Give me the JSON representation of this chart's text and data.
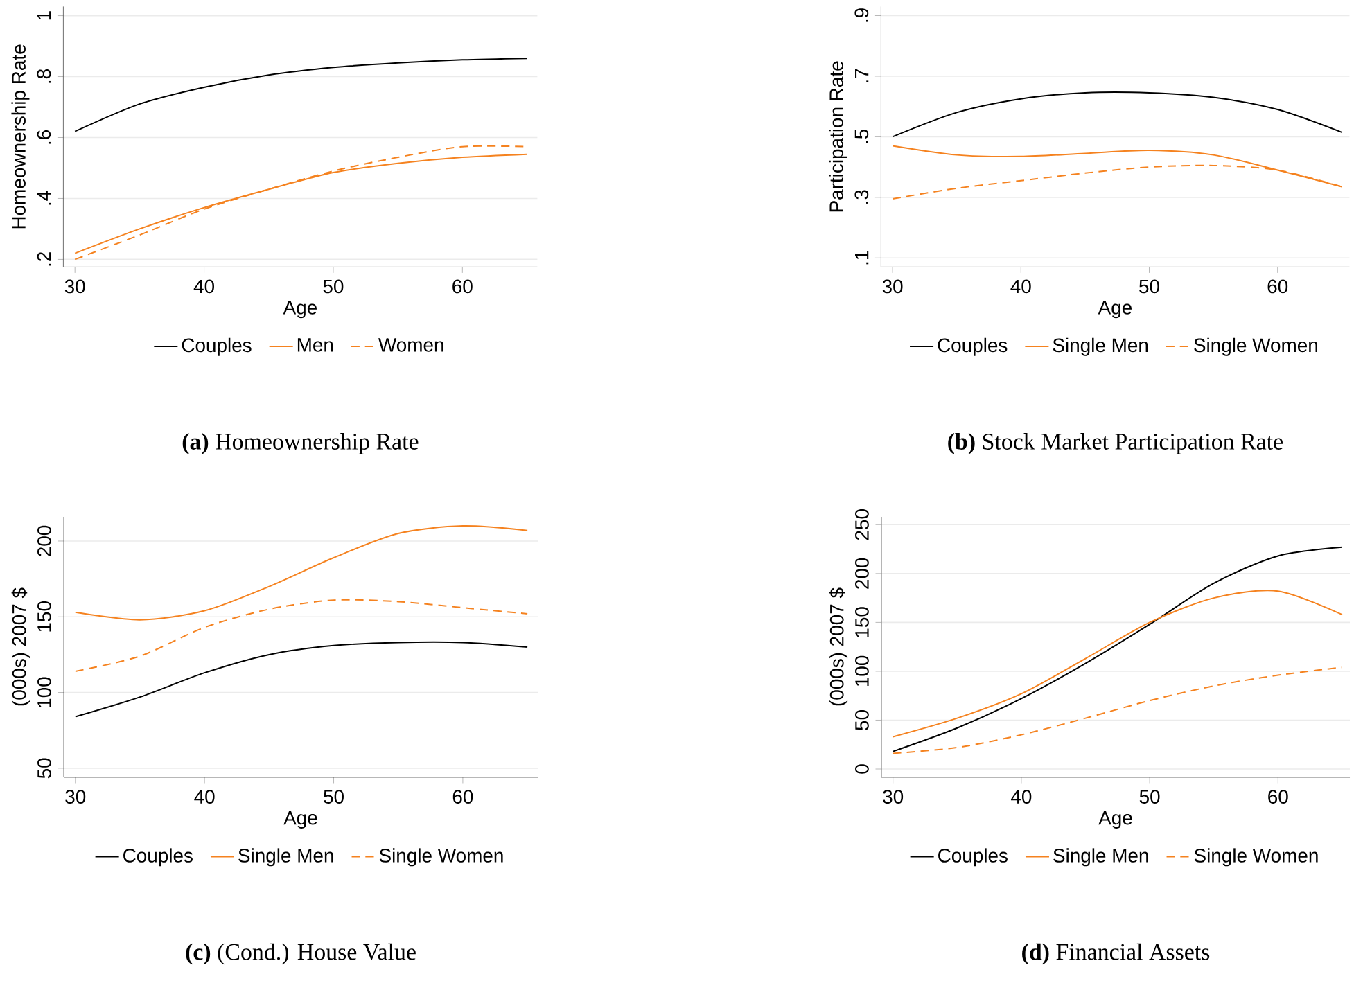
{
  "chart_data": [
    {
      "type": "line",
      "title": "**(a)** Homeownership Rate",
      "xlabel": "Age",
      "ylabel": "Homeownership Rate",
      "x": [
        30,
        35,
        40,
        45,
        50,
        55,
        60,
        65
      ],
      "xlim": [
        29.1,
        65.8
      ],
      "ylim": [
        0.175,
        1.03
      ],
      "xticks": [
        30,
        40,
        50,
        60
      ],
      "yticks": [
        {
          "value": 0.2,
          "label": ".2"
        },
        {
          "value": 0.4,
          "label": ".4"
        },
        {
          "value": 0.6,
          "label": ".6"
        },
        {
          "value": 0.8,
          "label": ".8"
        },
        1
      ],
      "grid": "y",
      "legend": "bottom",
      "series": [
        {
          "name": "Couples",
          "color": "#000000",
          "line_style": "solid",
          "values": [
            0.62,
            0.71,
            0.765,
            0.805,
            0.83,
            0.845,
            0.855,
            0.86
          ]
        },
        {
          "name": "Men",
          "color": "#f5821f",
          "line_style": "solid",
          "values": [
            0.22,
            0.3,
            0.37,
            0.43,
            0.485,
            0.515,
            0.535,
            0.545
          ]
        },
        {
          "name": "Women",
          "color": "#f5821f",
          "line_style": "dashed",
          "values": [
            0.2,
            0.28,
            0.365,
            0.43,
            0.49,
            0.535,
            0.57,
            0.57
          ]
        }
      ]
    },
    {
      "type": "line",
      "title": "**(b)** Stock Market Participation Rate",
      "xlabel": "Age",
      "ylabel": "Participation Rate",
      "x": [
        30,
        35,
        40,
        45,
        50,
        55,
        60,
        65
      ],
      "xlim": [
        29.1,
        65.6
      ],
      "ylim": [
        0.07,
        0.93
      ],
      "xticks": [
        30,
        40,
        50,
        60
      ],
      "yticks": [
        {
          "value": 0.1,
          "label": ".1"
        },
        {
          "value": 0.3,
          "label": ".3"
        },
        {
          "value": 0.5,
          "label": ".5"
        },
        {
          "value": 0.7,
          "label": ".7"
        },
        {
          "value": 0.9,
          "label": ".9"
        }
      ],
      "grid": "y",
      "legend": "bottom",
      "series": [
        {
          "name": "Couples",
          "color": "#000000",
          "line_style": "solid",
          "values": [
            0.5,
            0.58,
            0.625,
            0.645,
            0.645,
            0.63,
            0.59,
            0.515
          ]
        },
        {
          "name": "Single Men",
          "color": "#f5821f",
          "line_style": "solid",
          "values": [
            0.47,
            0.44,
            0.435,
            0.445,
            0.455,
            0.44,
            0.39,
            0.335
          ]
        },
        {
          "name": "Single Women",
          "color": "#f5821f",
          "line_style": "dashed",
          "values": [
            0.295,
            0.33,
            0.355,
            0.38,
            0.4,
            0.405,
            0.39,
            0.335
          ]
        }
      ]
    },
    {
      "type": "line",
      "title": "**(c)** (Cond.) House Value",
      "xlabel": "Age",
      "ylabel": "(000s) 2007 $",
      "x": [
        30,
        35,
        40,
        45,
        50,
        55,
        60,
        65
      ],
      "xlim": [
        29.1,
        65.8
      ],
      "ylim": [
        44,
        216
      ],
      "xticks": [
        30,
        40,
        50,
        60
      ],
      "yticks": [
        50,
        100,
        150,
        200
      ],
      "grid": "y",
      "legend": "bottom",
      "series": [
        {
          "name": "Couples",
          "color": "#000000",
          "line_style": "solid",
          "values": [
            84,
            97,
            113,
            125,
            131,
            133,
            133,
            130
          ]
        },
        {
          "name": "Single Men",
          "color": "#f5821f",
          "line_style": "solid",
          "values": [
            153,
            148,
            154,
            170,
            189,
            205,
            210,
            207
          ]
        },
        {
          "name": "Single Women",
          "color": "#f5821f",
          "line_style": "dashed",
          "values": [
            114,
            124,
            143,
            155,
            161,
            160,
            156,
            152
          ]
        }
      ]
    },
    {
      "type": "line",
      "title": "**(d)** Financial Assets",
      "xlabel": "Age",
      "ylabel": "(000s) 2007 $",
      "x": [
        30,
        35,
        40,
        45,
        50,
        55,
        60,
        65
      ],
      "xlim": [
        29.1,
        65.6
      ],
      "ylim": [
        -8.5,
        258
      ],
      "xticks": [
        30,
        40,
        50,
        60
      ],
      "yticks": [
        0,
        50,
        100,
        150,
        200,
        250
      ],
      "grid": "y",
      "legend": "bottom",
      "series": [
        {
          "name": "Couples",
          "color": "#000000",
          "line_style": "solid",
          "values": [
            18,
            42,
            72,
            108,
            148,
            190,
            218,
            227
          ]
        },
        {
          "name": "Single Men",
          "color": "#f5821f",
          "line_style": "solid",
          "values": [
            33,
            52,
            77,
            113,
            150,
            175,
            182,
            158
          ]
        },
        {
          "name": "Single Women",
          "color": "#f5821f",
          "line_style": "dashed",
          "values": [
            16,
            22,
            35,
            52,
            70,
            85,
            96,
            104
          ]
        }
      ]
    }
  ]
}
